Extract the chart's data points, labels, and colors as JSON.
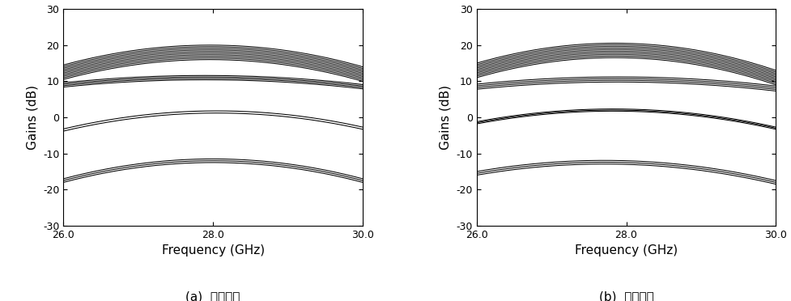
{
  "freq_start": 26.0,
  "freq_end": 30.0,
  "ylim": [
    -30,
    30
  ],
  "yticks": [
    -30,
    -20,
    -10,
    0,
    10,
    20,
    30
  ],
  "xticks": [
    26.0,
    28.0,
    30.0
  ],
  "xlabel": "Frequency (GHz)",
  "ylabel": "Gains (dB)",
  "label_a": "(a)  송신모드",
  "label_b": "(b)  수신모드",
  "line_color": "#000000",
  "plot_a_bands": [
    {
      "at_26": 12.5,
      "at_peak": 18.0,
      "at_30": 12.0,
      "spread": 2.0,
      "n_lines": 10
    },
    {
      "at_26": 9.0,
      "at_peak": 11.0,
      "at_30": 8.5,
      "spread": 0.6,
      "n_lines": 4
    },
    {
      "at_26": -3.5,
      "at_peak": 1.5,
      "at_30": -3.0,
      "spread": 0.3,
      "n_lines": 2
    },
    {
      "at_26": -17.5,
      "at_peak": -12.0,
      "at_30": -17.5,
      "spread": 0.5,
      "n_lines": 3
    }
  ],
  "plot_b_bands": [
    {
      "at_26": 13.0,
      "at_peak": 18.5,
      "at_30": 11.0,
      "spread": 2.0,
      "n_lines": 10
    },
    {
      "at_26": 8.5,
      "at_peak": 10.5,
      "at_30": 8.0,
      "spread": 0.7,
      "n_lines": 4
    },
    {
      "at_26": -1.5,
      "at_peak": 2.0,
      "at_30": -3.0,
      "spread": 0.3,
      "n_lines": 3
    },
    {
      "at_26": -15.5,
      "at_peak": -12.5,
      "at_30": -18.0,
      "spread": 0.5,
      "n_lines": 3
    }
  ],
  "figsize": [
    9.78,
    3.72
  ],
  "dpi": 100,
  "linewidth": 0.75,
  "tick_labelsize": 9,
  "axis_labelsize": 11,
  "caption_fontsize": 11
}
